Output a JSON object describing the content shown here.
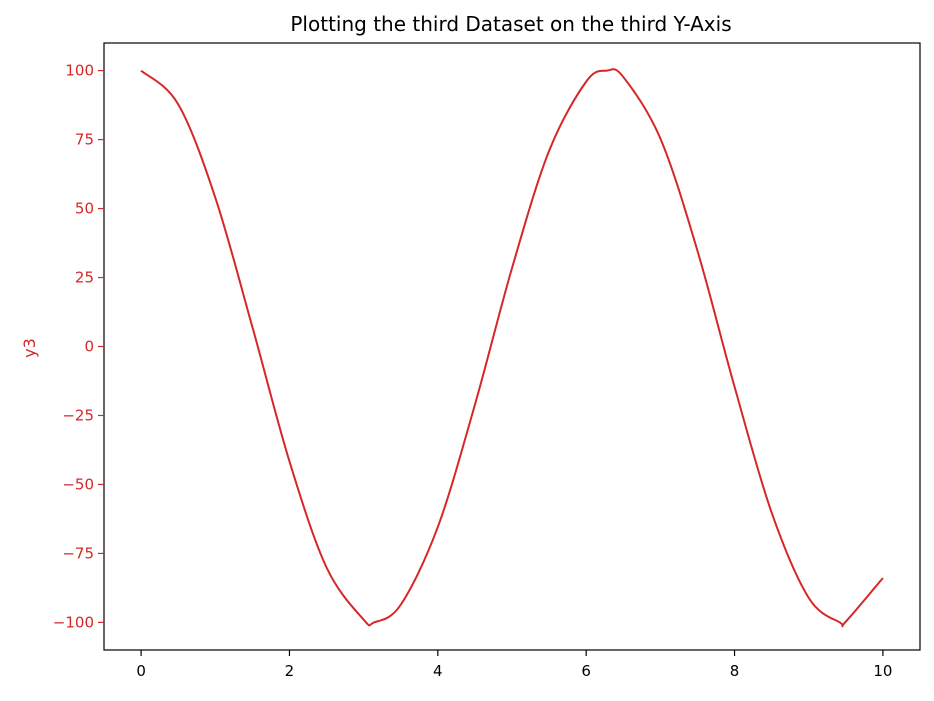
{
  "chart_data": {
    "type": "line",
    "title": "Plotting the third Dataset on the third Y-Axis",
    "xlabel": "",
    "ylabel": "y3",
    "xlim": [
      -0.5,
      10.5
    ],
    "ylim": [
      -110,
      110
    ],
    "x_ticks": [
      0,
      2,
      4,
      6,
      8,
      10
    ],
    "x_tick_labels": [
      "0",
      "2",
      "4",
      "6",
      "8",
      "10"
    ],
    "y_ticks": [
      100,
      75,
      50,
      25,
      0,
      -25,
      -50,
      -75,
      -100
    ],
    "y_tick_labels": [
      "100",
      "75",
      "50",
      "25",
      "0",
      "−25",
      "−50",
      "−75",
      "−100"
    ],
    "grid": false,
    "legend": "none",
    "series": [
      {
        "color": "#d62728",
        "x": [
          0,
          0.5,
          1,
          1.5,
          2,
          2.5,
          3,
          3.14,
          3.5,
          4,
          4.5,
          5,
          5.5,
          6,
          6.28,
          6.5,
          7,
          7.5,
          8,
          8.5,
          9,
          9.42,
          9.5,
          10
        ],
        "y": [
          100,
          87.8,
          54.0,
          7.1,
          -41.6,
          -80.1,
          -99.0,
          -100,
          -93.6,
          -65.4,
          -21.1,
          28.4,
          70.9,
          96.0,
          100,
          97.7,
          75.4,
          34.7,
          -14.6,
          -60.2,
          -91.1,
          -100,
          -99.7,
          -83.9
        ]
      }
    ],
    "ylabel_color": "#d62728",
    "ytick_color": "#d62728"
  }
}
